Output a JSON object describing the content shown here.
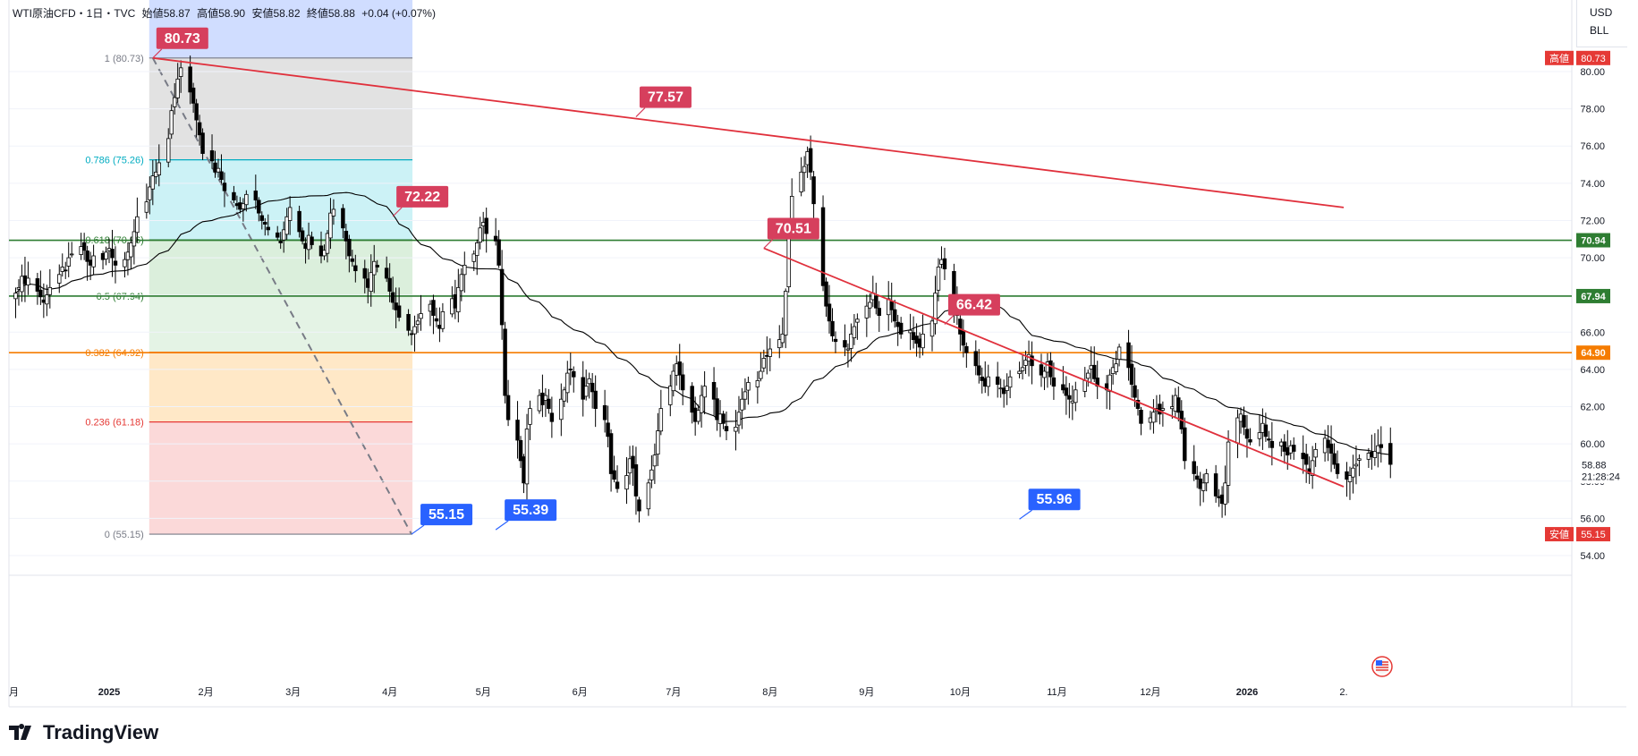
{
  "header": {
    "symbol": "WTI原油CFD・1日・TVC",
    "open_label": "始値",
    "open": "58.87",
    "high_label": "高値",
    "high": "58.90",
    "low_label": "安値",
    "low": "58.82",
    "close_label": "終値",
    "close": "58.88",
    "change": "+0.04 (+0.07%)"
  },
  "unit_box": {
    "currency": "USD",
    "unit": "BLL"
  },
  "brand": {
    "name": "TradingView"
  },
  "colors": {
    "up_candle": "#ffffff",
    "down_candle": "#000000",
    "trendline": "#e0303c",
    "ma": "#000000",
    "green_level": "#2e7d32",
    "orange_level": "#f57c00",
    "red_level": "#e53935",
    "teal_level": "#00acc1",
    "high_label_bg": "#d63f5d",
    "low_label_bg": "#2962ff"
  },
  "chart_data": {
    "type": "candlestick",
    "instrument": "WTI原油CFD",
    "interval": "1日",
    "y_axis": {
      "ticks": [
        "80.00",
        "78.00",
        "76.00",
        "74.00",
        "72.00",
        "70.00",
        "68.00",
        "66.00",
        "64.00",
        "62.00",
        "60.00",
        "58.00",
        "56.00",
        "54.00"
      ],
      "ylim": [
        53.2,
        81.3
      ]
    },
    "x_axis": {
      "tick_labels": [
        "月",
        "2025",
        "2月",
        "3月",
        "4月",
        "5月",
        "6月",
        "7月",
        "8月",
        "9月",
        "10月",
        "11月",
        "12月",
        "2026",
        "2."
      ]
    },
    "close_series": {
      "start_date": "2024-12-02",
      "step_days": 1,
      "values": [
        68.1,
        68.4,
        69.0,
        68.6,
        68.9,
        68.2,
        67.9,
        67.6,
        68.0,
        68.4,
        69.1,
        69.5,
        69.3,
        70.0,
        70.2,
        70.6,
        70.4,
        69.8,
        69.6,
        70.1,
        69.9,
        70.3,
        70.5,
        70.0,
        69.6,
        69.9,
        70.3,
        70.8,
        71.4,
        72.2,
        73.0,
        73.8,
        74.4,
        74.6,
        75.1,
        76.4,
        77.9,
        78.6,
        79.6,
        80.2,
        78.9,
        78.3,
        77.4,
        76.6,
        75.6,
        75.2,
        74.6,
        74.8,
        74.2,
        73.6,
        73.1,
        72.8,
        72.6,
        72.9,
        73.4,
        73.1,
        72.4,
        72.0,
        71.8,
        71.5,
        71.1,
        70.8,
        71.5,
        72.2,
        72.7,
        71.4,
        70.9,
        70.5,
        71.2,
        70.7,
        70.1,
        70.4,
        71.3,
        72.4,
        72.6,
        71.6,
        70.9,
        70.1,
        69.8,
        69.3,
        68.9,
        68.4,
        69.2,
        69.8,
        69.5,
        68.9,
        68.2,
        67.6,
        67.2,
        66.8,
        66.1,
        65.9,
        66.3,
        66.6,
        67.0,
        67.5,
        66.9,
        66.6,
        66.2,
        67.1,
        67.8,
        67.3,
        68.4,
        69.1,
        69.6,
        70.2,
        70.8,
        71.6,
        71.9,
        71.3,
        70.9,
        69.6,
        66.4,
        62.6,
        61.3,
        60.2,
        59.1,
        57.9,
        60.8,
        61.9,
        62.6,
        62.1,
        62.6,
        61.9,
        61.2,
        62.4,
        62.9,
        63.8,
        64.0,
        63.6,
        62.4,
        63.1,
        63.5,
        62.8,
        61.9,
        61.3,
        60.4,
        58.4,
        58.1,
        57.6,
        58.3,
        59.2,
        58.7,
        57.2,
        56.4,
        57.9,
        58.6,
        59.4,
        60.7,
        61.9,
        63.1,
        63.9,
        64.3,
        63.7,
        62.9,
        61.7,
        61.2,
        61.8,
        62.6,
        63.1,
        62.4,
        61.3,
        61.6,
        61.1,
        60.7,
        60.9,
        61.7,
        62.4,
        62.8,
        63.3,
        63.4,
        63.9,
        64.6,
        64.7,
        65.1,
        65.6,
        65.9,
        68.2,
        71.8,
        73.3,
        74.6,
        74.9,
        75.7,
        74.6,
        72.9,
        68.5,
        67.4,
        66.6,
        65.8,
        65.5,
        65.2,
        65.1,
        65.9,
        66.3,
        66.7,
        67.4,
        67.6,
        68.1,
        67.3,
        66.9,
        67.8,
        67.2,
        66.6,
        66.3,
        65.9,
        66.1,
        65.6,
        65.4,
        65.2,
        65.9,
        66.6,
        68.1,
        69.5,
        69.9,
        69.4,
        67.4,
        66.9,
        65.9,
        65.3,
        64.9,
        64.2,
        63.7,
        63.4,
        63.1,
        63.6,
        63.2,
        63.0,
        62.7,
        63.1,
        63.6,
        63.9,
        64.1,
        64.5,
        64.8,
        64.2,
        63.7,
        63.9,
        64.4,
        63.6,
        63.1,
        62.9,
        62.6,
        62.4,
        62.3,
        62.9,
        63.4,
        63.8,
        64.2,
        63.5,
        63.1,
        62.9,
        63.7,
        64.1,
        64.3,
        65.2,
        64.1,
        63.2,
        62.5,
        61.9,
        61.1,
        61.4,
        61.7,
        61.9,
        61.6,
        61.9,
        62.0,
        62.6,
        61.7,
        60.8,
        59.1,
        58.4,
        58.1,
        57.6,
        57.9,
        58.4,
        57.2,
        57.1,
        56.8,
        57.9,
        60.1,
        61.4,
        61.6,
        60.9,
        60.3,
        60.1,
        60.6,
        61.1,
        60.4,
        60.2,
        59.8,
        60.1,
        59.6,
        59.4,
        59.9,
        59.6,
        59.2,
        58.9,
        58.4,
        59.1,
        59.7,
        60.3,
        59.8,
        59.5,
        58.9,
        58.4,
        58.1,
        58.3,
        58.7,
        58.9,
        59.2,
        59.5,
        59.3,
        59.6,
        59.9,
        59.8,
        58.9
      ]
    },
    "moving_average": {
      "label": "移動平均線"
    },
    "trendlines": [
      {
        "from": [
          "2025-01-15",
          80.73
        ],
        "to": [
          "2026-02-01",
          72.7
        ]
      },
      {
        "from": [
          "2025-07-30",
          70.51
        ],
        "to": [
          "2026-02-01",
          57.7
        ]
      }
    ],
    "fibonacci": {
      "from": [
        "2025-01-15",
        80.73
      ],
      "to": [
        "2025-04-08",
        55.15
      ],
      "levels": [
        {
          "ratio": "1",
          "price": 80.73,
          "label": "1 (80.73)"
        },
        {
          "ratio": "0.786",
          "price": 75.26,
          "label": "0.786 (75.26)"
        },
        {
          "ratio": "0.618",
          "price": 70.96,
          "label": "0.618 (70.96)"
        },
        {
          "ratio": "0.5",
          "price": 67.94,
          "label": "0.5 (67.94)"
        },
        {
          "ratio": "0.382",
          "price": 64.92,
          "label": "0.382 (64.92)"
        },
        {
          "ratio": "0.236",
          "price": 61.18,
          "label": "0.236 (61.18)"
        },
        {
          "ratio": "0",
          "price": 55.15,
          "label": "0 (55.15)"
        }
      ]
    },
    "horizontal_levels": [
      {
        "price": 70.94,
        "label": "70.94",
        "color": "#2e7d32"
      },
      {
        "price": 67.94,
        "label": "67.94",
        "color": "#2e7d32"
      },
      {
        "price": 64.9,
        "label": "64.90",
        "color": "#f57c00"
      }
    ],
    "callouts": [
      {
        "date": "2025-01-15",
        "price": 80.73,
        "label": "80.73",
        "kind": "high"
      },
      {
        "date": "2025-04-02",
        "price": 72.22,
        "label": "72.22",
        "kind": "high"
      },
      {
        "date": "2025-06-19",
        "price": 77.57,
        "label": "77.57",
        "kind": "high"
      },
      {
        "date": "2025-07-30",
        "price": 70.51,
        "label": "70.51",
        "kind": "high"
      },
      {
        "date": "2025-09-26",
        "price": 66.42,
        "label": "66.42",
        "kind": "high"
      },
      {
        "date": "2025-04-08",
        "price": 55.15,
        "label": "55.15",
        "kind": "low"
      },
      {
        "date": "2025-05-05",
        "price": 55.39,
        "label": "55.39",
        "kind": "low"
      },
      {
        "date": "2025-10-20",
        "price": 55.96,
        "label": "55.96",
        "kind": "low"
      }
    ],
    "axis_price_labels": [
      {
        "price": 80.73,
        "prefix": "高値",
        "label": "80.73"
      },
      {
        "price": 55.15,
        "prefix": "安値",
        "label": "55.15"
      },
      {
        "price": 58.88,
        "label": "58.88",
        "sub": "21:28:24"
      }
    ]
  }
}
